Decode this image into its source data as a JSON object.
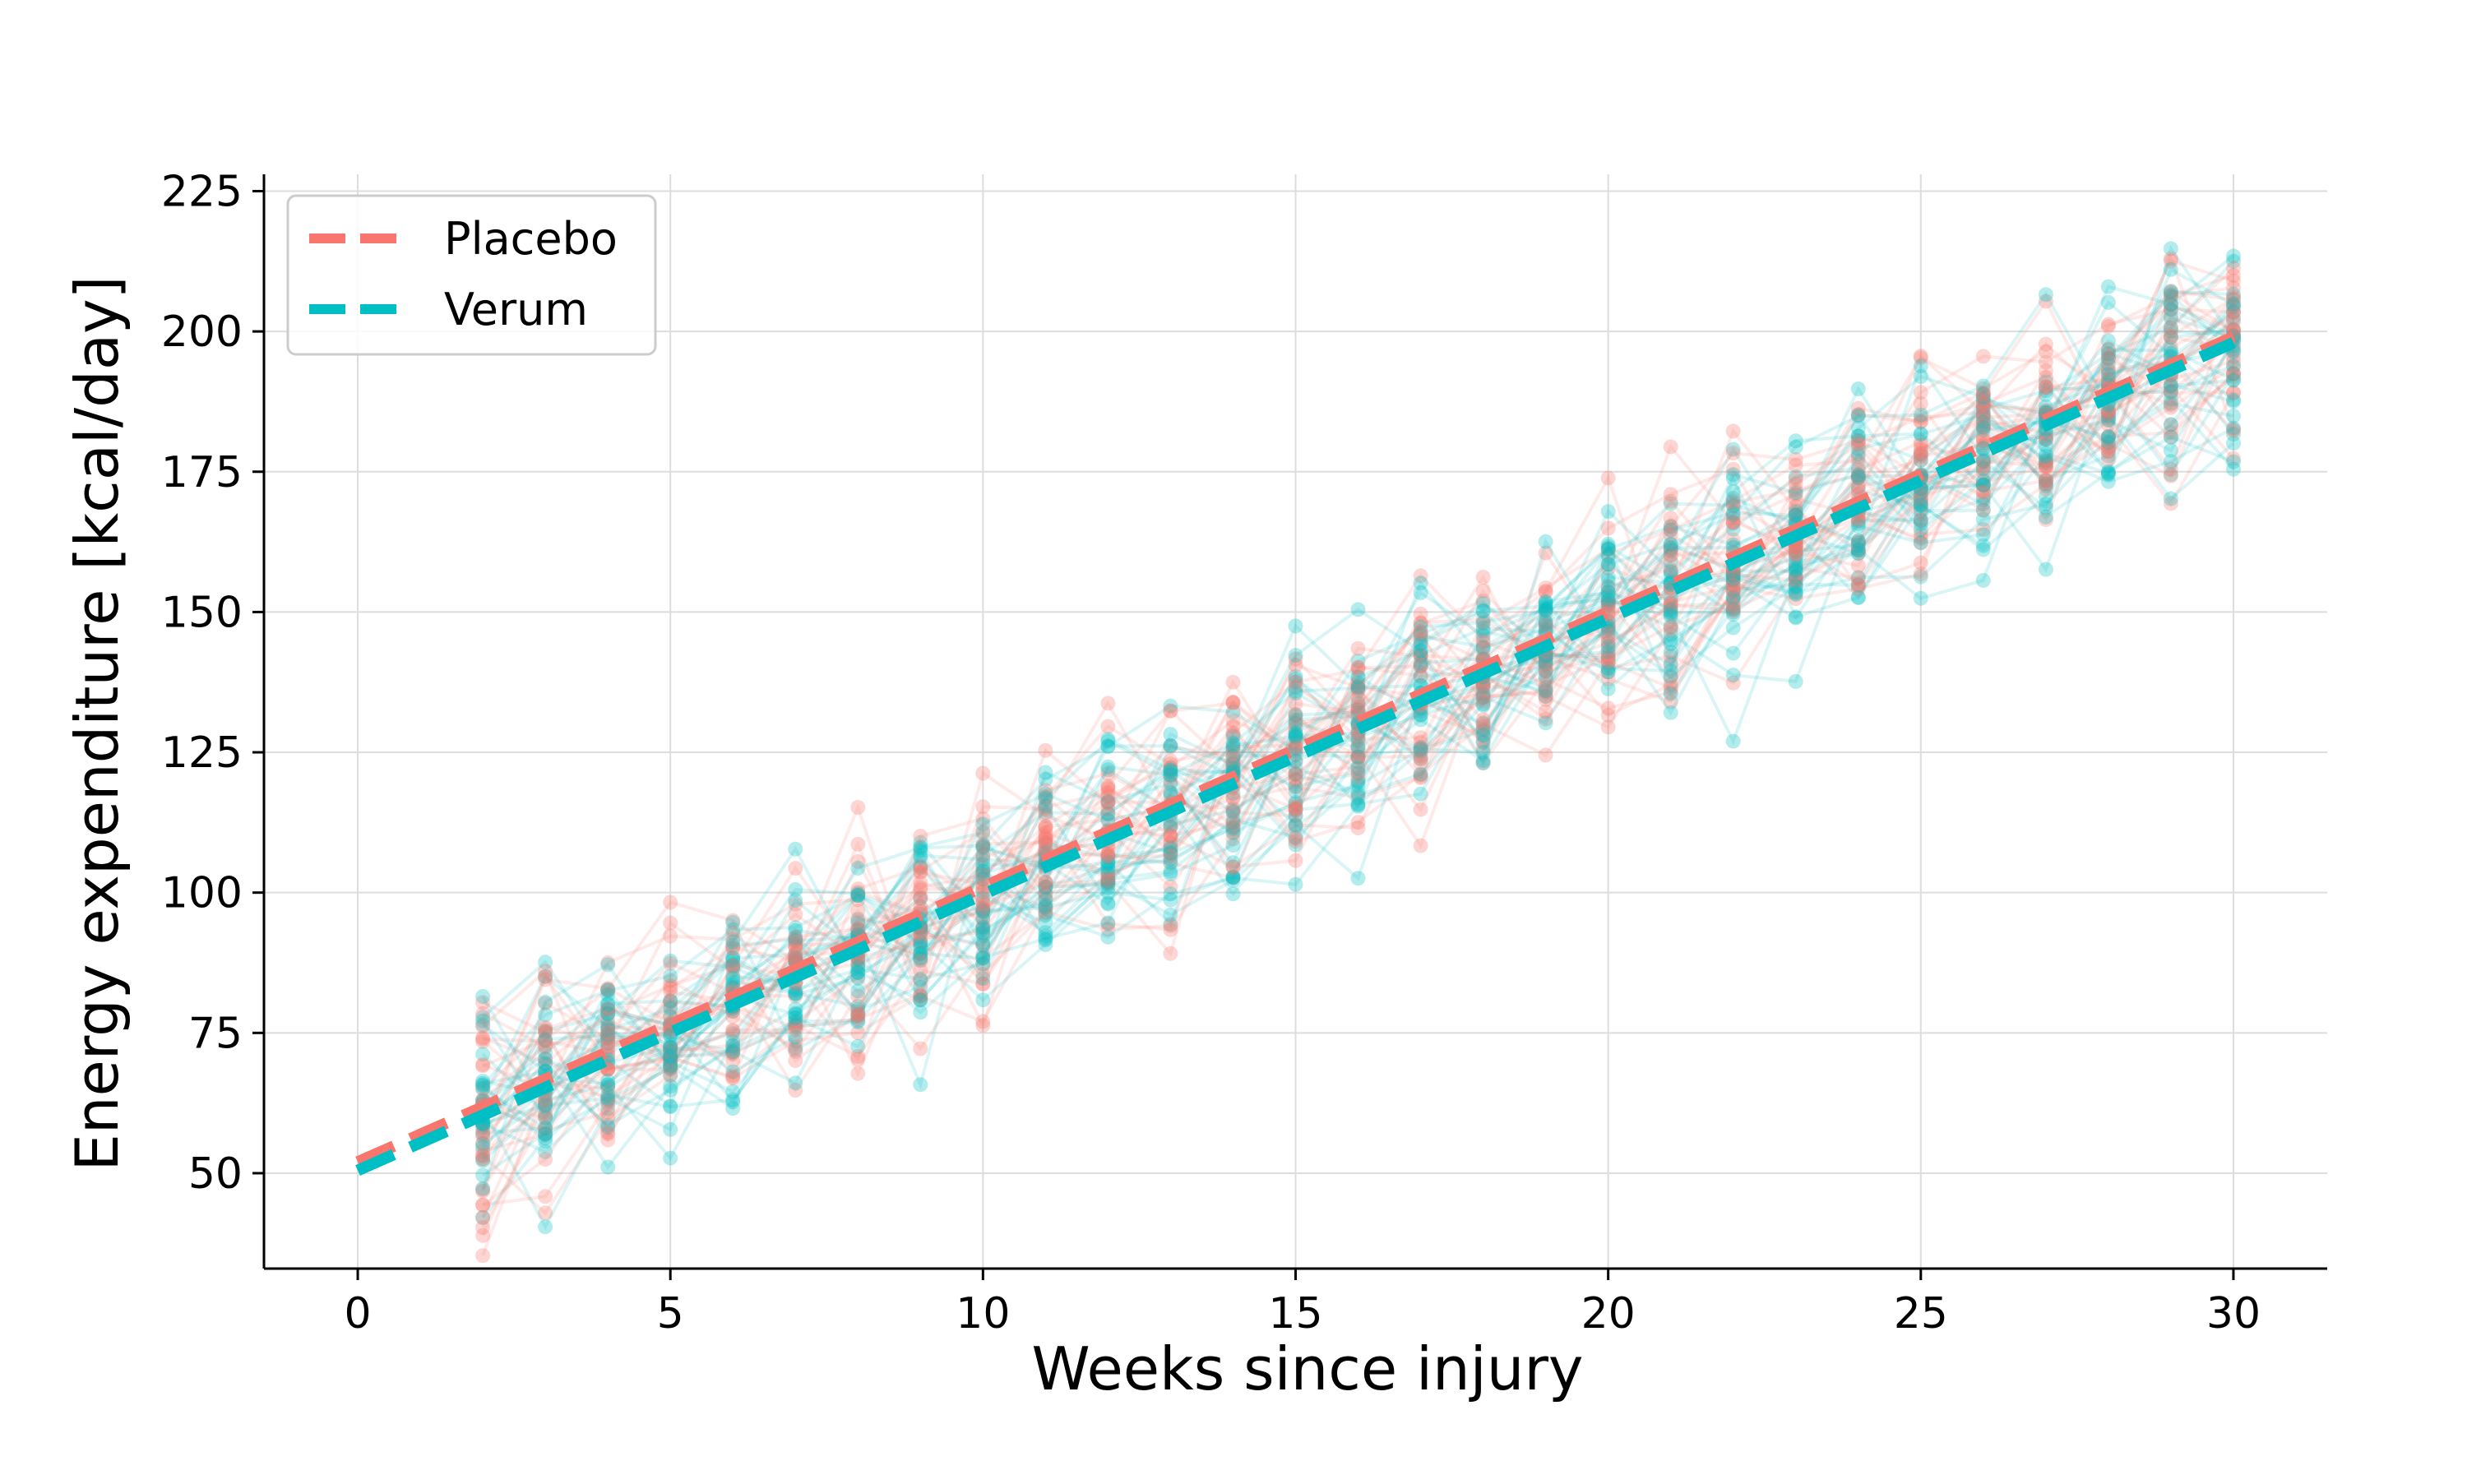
{
  "chart_data": {
    "type": "line",
    "xlabel": "Weeks since injury",
    "ylabel": "Energy expenditure [kcal/day]",
    "xlim": [
      -1.5,
      31.5
    ],
    "ylim": [
      33,
      228
    ],
    "xticks": [
      0,
      5,
      10,
      15,
      20,
      25,
      30
    ],
    "yticks": [
      50,
      75,
      100,
      125,
      150,
      175,
      200,
      225
    ],
    "grid": true,
    "legend": {
      "placement": "top-left"
    },
    "series": [
      {
        "name": "Placebo",
        "color": "#F8766D",
        "style": "dashed",
        "x": [
          0,
          30
        ],
        "y": [
          52,
          199
        ]
      },
      {
        "name": "Verum",
        "color": "#00BFC4",
        "style": "dashed",
        "x": [
          0,
          30
        ],
        "y": [
          50.5,
          198
        ]
      }
    ],
    "individual_trajectories": {
      "description_weeks": [
        2,
        30
      ],
      "placebo_color": "#F8766D",
      "verum_color": "#00BFC4",
      "n_subjects_per_group": 30,
      "trend_intercept": 51,
      "trend_slope": 4.9,
      "noise_sd": 8
    }
  }
}
